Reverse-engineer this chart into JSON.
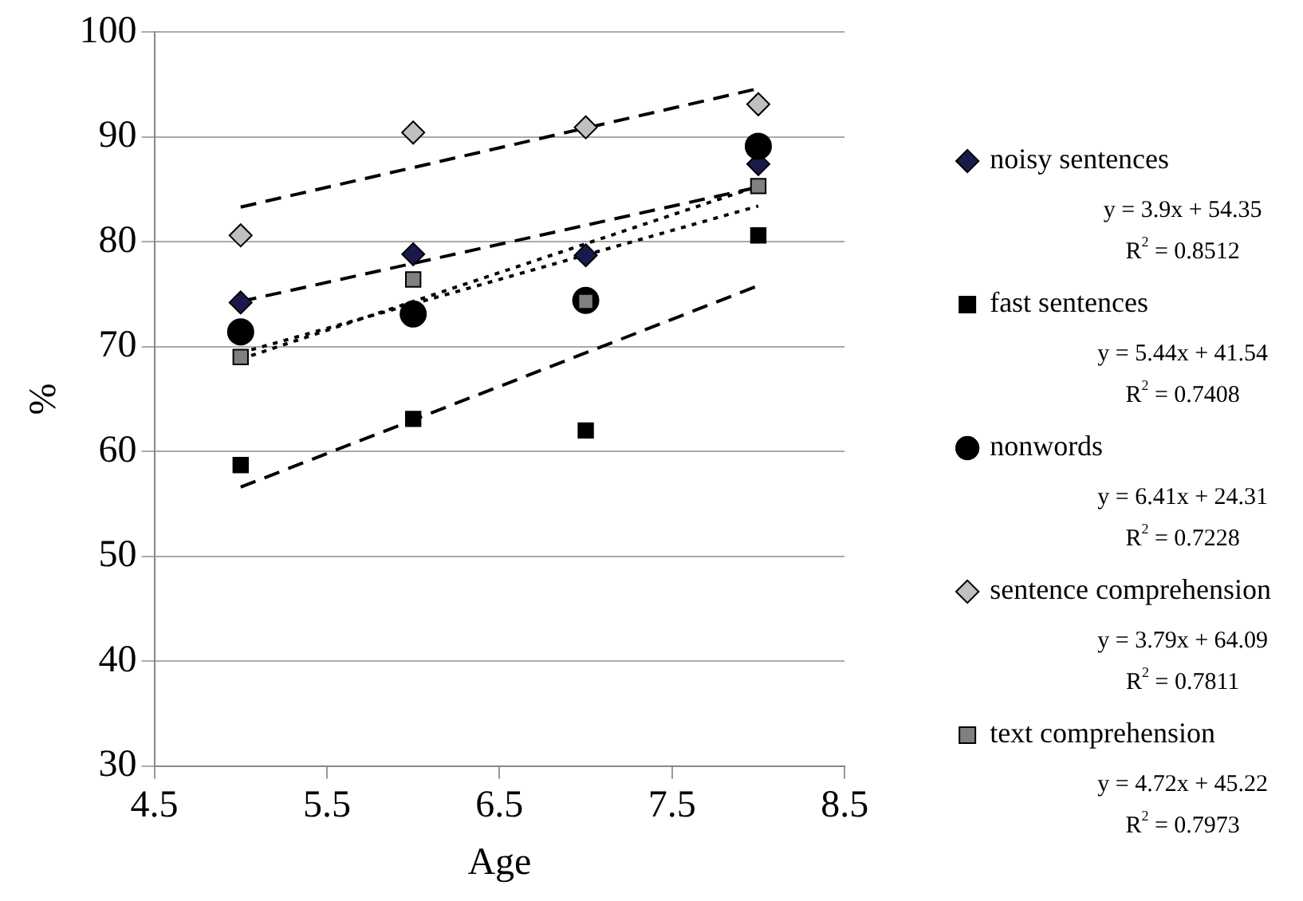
{
  "chart_data": {
    "type": "scatter",
    "xlabel": "Age",
    "ylabel": "%",
    "xlim": [
      4.5,
      8.5
    ],
    "xticks": [
      4.5,
      5.5,
      6.5,
      7.5,
      8.5
    ],
    "ylim": [
      30,
      100
    ],
    "yticks": [
      30,
      40,
      50,
      60,
      70,
      80,
      90,
      100
    ],
    "grid": "y",
    "legend": "right",
    "series": [
      {
        "name": "noisy sentences",
        "color": "#1a1a4a",
        "marker": "diamond",
        "x": [
          5,
          6,
          7,
          8
        ],
        "values": [
          74.2,
          78.8,
          78.7,
          87.4
        ]
      },
      {
        "name": "fast sentences",
        "color": "#000000",
        "marker": "square",
        "x": [
          5,
          6,
          7,
          8
        ],
        "values": [
          58.7,
          63.1,
          62.0,
          80.6
        ]
      },
      {
        "name": "nonwords",
        "color": "#000000",
        "marker": "circle",
        "x": [
          5,
          6,
          7,
          8
        ],
        "values": [
          71.4,
          73.1,
          74.4,
          89.1
        ]
      },
      {
        "name": "sentence comprehension",
        "color": "#c0c0c0",
        "marker": "diamond",
        "x": [
          5,
          6,
          7,
          8
        ],
        "values": [
          80.6,
          90.4,
          90.9,
          93.1
        ]
      },
      {
        "name": "text comprehension",
        "color": "#808080",
        "marker": "square",
        "x": [
          5,
          6,
          7,
          8
        ],
        "values": [
          69.0,
          76.4,
          74.3,
          85.3
        ]
      },
      {
        "type": "line",
        "color": "#000000",
        "marker": "none",
        "line_style": "dashed",
        "x": [
          5,
          8
        ],
        "values": [
          74.3,
          85.2
        ]
      },
      {
        "type": "line",
        "color": "#000000",
        "marker": "none",
        "line_style": "dashed",
        "x": [
          5,
          8
        ],
        "values": [
          56.6,
          75.8
        ]
      },
      {
        "type": "line",
        "color": "#000000",
        "marker": "none",
        "line_style": "dotted",
        "x": [
          5,
          8
        ],
        "values": [
          68.8,
          85.3
        ]
      },
      {
        "type": "line",
        "color": "#000000",
        "marker": "none",
        "line_style": "dashed",
        "x": [
          5,
          8
        ],
        "values": [
          83.3,
          94.6
        ]
      },
      {
        "type": "line",
        "color": "#000000",
        "marker": "none",
        "line_style": "dotted",
        "x": [
          5,
          8
        ],
        "values": [
          69.4,
          83.4
        ]
      }
    ],
    "annotations": [
      "y = 3.9x + 54.35",
      "R$^{2}$ = 0.8512",
      "y = 5.44x + 41.54",
      "R$^{2}$ = 0.7408",
      "y = 6.41x + 24.31",
      "R$^{2}$ = 0.7228",
      "y = 3.79x + 64.09",
      "R$^{2}$ = 0.7811",
      "y = 4.72x + 45.22",
      "R$^{2}$ = 0.7973"
    ]
  }
}
